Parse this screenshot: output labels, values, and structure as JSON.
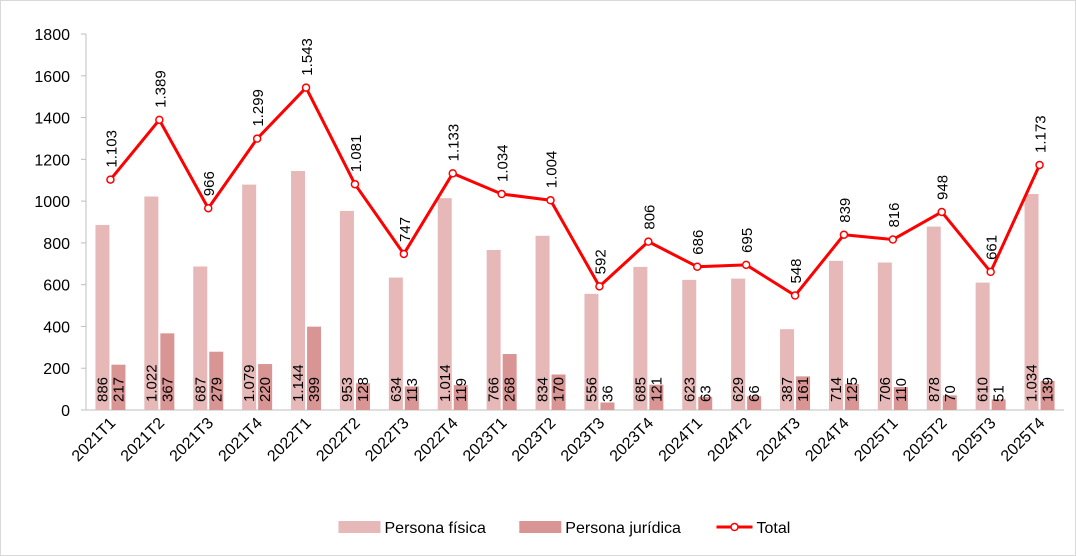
{
  "chart_data": {
    "type": "bar_line",
    "categories": [
      "2021T1",
      "2021T2",
      "2021T3",
      "2021T4",
      "2022T1",
      "2022T2",
      "2022T3",
      "2022T4",
      "2023T1",
      "2023T2",
      "2023T3",
      "2023T4",
      "2024T1",
      "2024T2",
      "2024T3",
      "2024T4",
      "2025T1",
      "2025T2",
      "2025T3",
      "2025T4"
    ],
    "series": [
      {
        "name": "Persona física",
        "type": "bar",
        "color": "#e6b8b7",
        "values": [
          886,
          1022,
          687,
          1079,
          1144,
          953,
          634,
          1014,
          766,
          834,
          556,
          685,
          623,
          629,
          387,
          714,
          706,
          878,
          610,
          1034
        ],
        "value_labels": [
          "886",
          "1.022",
          "687",
          "1.079",
          "1.144",
          "953",
          "634",
          "1.014",
          "766",
          "834",
          "556",
          "685",
          "623",
          "629",
          "387",
          "714",
          "706",
          "878",
          "610",
          "1.034"
        ]
      },
      {
        "name": "Persona jurídica",
        "type": "bar",
        "color": "#d99594",
        "values": [
          217,
          367,
          279,
          220,
          399,
          128,
          113,
          119,
          268,
          170,
          36,
          121,
          63,
          66,
          161,
          125,
          110,
          70,
          51,
          139
        ],
        "value_labels": [
          "217",
          "367",
          "279",
          "220",
          "399",
          "128",
          "113",
          "119",
          "268",
          "170",
          "36",
          "121",
          "63",
          "66",
          "161",
          "125",
          "110",
          "70",
          "51",
          "139"
        ]
      },
      {
        "name": "Total",
        "type": "line",
        "color": "#ff0000",
        "values": [
          1103,
          1389,
          966,
          1299,
          1543,
          1081,
          747,
          1133,
          1034,
          1004,
          592,
          806,
          686,
          695,
          548,
          839,
          816,
          948,
          661,
          1173
        ],
        "value_labels": [
          "1.103",
          "1.389",
          "966",
          "1.299",
          "1.543",
          "1.081",
          "747",
          "1.133",
          "1.034",
          "1.004",
          "592",
          "806",
          "686",
          "695",
          "548",
          "839",
          "816",
          "948",
          "661",
          "1.173"
        ]
      }
    ],
    "ylim": [
      0,
      1800
    ],
    "yticks": [
      0,
      200,
      400,
      600,
      800,
      1000,
      1200,
      1400,
      1600,
      1800
    ],
    "grid": false,
    "legend": "bottom"
  }
}
